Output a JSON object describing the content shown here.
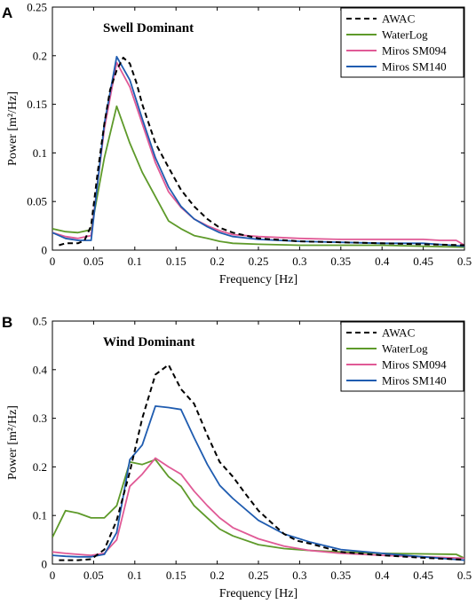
{
  "chart_data": [
    {
      "type": "line",
      "panel_label": "A",
      "title": "Swell Dominant",
      "xlabel": "Frequency [Hz]",
      "ylabel": "Power [m²/Hz]",
      "xlim": [
        0,
        0.5
      ],
      "ylim": [
        0,
        0.25
      ],
      "xticks": [
        "0",
        "0.05",
        "0.1",
        "0.15",
        "0.2",
        "0.25",
        "0.3",
        "0.35",
        "0.4",
        "0.45",
        "0.5"
      ],
      "yticks": [
        "0",
        "0.05",
        "0.1",
        "0.15",
        "0.2",
        "0.25"
      ],
      "grid": false,
      "legend_position": "top-right",
      "series": [
        {
          "name": "AWAC",
          "color": "#000000",
          "dash": "6,4",
          "x": [
            0.008,
            0.016,
            0.031,
            0.039,
            0.047,
            0.055,
            0.063,
            0.07,
            0.078,
            0.086,
            0.094,
            0.102,
            0.109,
            0.117,
            0.125,
            0.141,
            0.156,
            0.172,
            0.188,
            0.203,
            0.219,
            0.25,
            0.3,
            0.35,
            0.4,
            0.45,
            0.5
          ],
          "y": [
            0.005,
            0.007,
            0.007,
            0.01,
            0.025,
            0.08,
            0.13,
            0.165,
            0.185,
            0.198,
            0.192,
            0.172,
            0.15,
            0.13,
            0.11,
            0.085,
            0.062,
            0.045,
            0.032,
            0.023,
            0.018,
            0.012,
            0.009,
            0.008,
            0.007,
            0.006,
            0.005
          ]
        },
        {
          "name": "WaterLog",
          "color": "#5e9a2a",
          "dash": "",
          "x": [
            0,
            0.016,
            0.031,
            0.047,
            0.063,
            0.078,
            0.094,
            0.109,
            0.125,
            0.141,
            0.156,
            0.172,
            0.188,
            0.203,
            0.219,
            0.25,
            0.3,
            0.35,
            0.4,
            0.45,
            0.5
          ],
          "y": [
            0.022,
            0.019,
            0.018,
            0.021,
            0.095,
            0.148,
            0.11,
            0.08,
            0.055,
            0.03,
            0.022,
            0.015,
            0.012,
            0.009,
            0.007,
            0.006,
            0.005,
            0.005,
            0.005,
            0.004,
            0.003
          ]
        },
        {
          "name": "Miros SM094",
          "color": "#e05a96",
          "dash": "",
          "x": [
            0,
            0.016,
            0.031,
            0.047,
            0.063,
            0.078,
            0.094,
            0.109,
            0.125,
            0.141,
            0.156,
            0.172,
            0.188,
            0.203,
            0.219,
            0.25,
            0.3,
            0.35,
            0.4,
            0.45,
            0.47,
            0.49,
            0.5
          ],
          "y": [
            0.018,
            0.014,
            0.012,
            0.015,
            0.125,
            0.193,
            0.168,
            0.13,
            0.09,
            0.06,
            0.044,
            0.032,
            0.025,
            0.02,
            0.016,
            0.014,
            0.012,
            0.011,
            0.011,
            0.011,
            0.01,
            0.01,
            0.005
          ]
        },
        {
          "name": "Miros SM140",
          "color": "#1f5cb0",
          "dash": "",
          "x": [
            0,
            0.016,
            0.031,
            0.047,
            0.063,
            0.078,
            0.094,
            0.109,
            0.125,
            0.141,
            0.156,
            0.172,
            0.188,
            0.203,
            0.219,
            0.25,
            0.3,
            0.35,
            0.4,
            0.45,
            0.5
          ],
          "y": [
            0.018,
            0.012,
            0.01,
            0.01,
            0.13,
            0.199,
            0.175,
            0.135,
            0.095,
            0.065,
            0.045,
            0.032,
            0.024,
            0.018,
            0.014,
            0.011,
            0.009,
            0.008,
            0.007,
            0.007,
            0.004
          ]
        }
      ]
    },
    {
      "type": "line",
      "panel_label": "B",
      "title": "Wind Dominant",
      "xlabel": "Frequency [Hz]",
      "ylabel": "Power [m²/Hz]",
      "xlim": [
        0,
        0.5
      ],
      "ylim": [
        0,
        0.5
      ],
      "xticks": [
        "0",
        "0.05",
        "0.1",
        "0.15",
        "0.2",
        "0.25",
        "0.3",
        "0.35",
        "0.4",
        "0.45",
        "0.5"
      ],
      "yticks": [
        "0",
        "0.1",
        "0.2",
        "0.3",
        "0.4",
        "0.5"
      ],
      "grid": false,
      "legend_position": "top-right",
      "series": [
        {
          "name": "AWAC",
          "color": "#000000",
          "dash": "6,4",
          "x": [
            0.008,
            0.031,
            0.047,
            0.063,
            0.078,
            0.094,
            0.109,
            0.125,
            0.141,
            0.156,
            0.172,
            0.188,
            0.203,
            0.219,
            0.234,
            0.25,
            0.266,
            0.281,
            0.297,
            0.313,
            0.35,
            0.4,
            0.45,
            0.5
          ],
          "y": [
            0.008,
            0.008,
            0.01,
            0.03,
            0.09,
            0.19,
            0.3,
            0.39,
            0.41,
            0.36,
            0.33,
            0.265,
            0.21,
            0.18,
            0.145,
            0.11,
            0.085,
            0.062,
            0.048,
            0.042,
            0.025,
            0.018,
            0.013,
            0.009
          ]
        },
        {
          "name": "WaterLog",
          "color": "#5e9a2a",
          "dash": "",
          "x": [
            0,
            0.016,
            0.031,
            0.047,
            0.063,
            0.078,
            0.094,
            0.109,
            0.125,
            0.141,
            0.156,
            0.172,
            0.188,
            0.203,
            0.219,
            0.25,
            0.281,
            0.313,
            0.35,
            0.4,
            0.45,
            0.49,
            0.5
          ],
          "y": [
            0.055,
            0.11,
            0.105,
            0.095,
            0.095,
            0.12,
            0.21,
            0.205,
            0.215,
            0.18,
            0.16,
            0.12,
            0.095,
            0.072,
            0.058,
            0.04,
            0.032,
            0.028,
            0.025,
            0.022,
            0.021,
            0.02,
            0.012
          ]
        },
        {
          "name": "Miros SM094",
          "color": "#e05a96",
          "dash": "",
          "x": [
            0,
            0.016,
            0.031,
            0.047,
            0.063,
            0.078,
            0.094,
            0.109,
            0.125,
            0.141,
            0.156,
            0.172,
            0.188,
            0.203,
            0.219,
            0.25,
            0.281,
            0.313,
            0.35,
            0.4,
            0.45,
            0.5
          ],
          "y": [
            0.025,
            0.022,
            0.02,
            0.018,
            0.022,
            0.05,
            0.16,
            0.185,
            0.218,
            0.2,
            0.185,
            0.15,
            0.12,
            0.095,
            0.075,
            0.052,
            0.037,
            0.028,
            0.022,
            0.018,
            0.015,
            0.012
          ]
        },
        {
          "name": "Miros SM140",
          "color": "#1f5cb0",
          "dash": "",
          "x": [
            0,
            0.016,
            0.031,
            0.047,
            0.063,
            0.078,
            0.094,
            0.109,
            0.125,
            0.141,
            0.156,
            0.172,
            0.188,
            0.203,
            0.219,
            0.25,
            0.281,
            0.313,
            0.35,
            0.4,
            0.45,
            0.5
          ],
          "y": [
            0.018,
            0.016,
            0.015,
            0.015,
            0.02,
            0.065,
            0.215,
            0.245,
            0.325,
            0.322,
            0.318,
            0.26,
            0.205,
            0.162,
            0.135,
            0.09,
            0.062,
            0.045,
            0.03,
            0.022,
            0.015,
            0.008
          ]
        }
      ]
    }
  ]
}
